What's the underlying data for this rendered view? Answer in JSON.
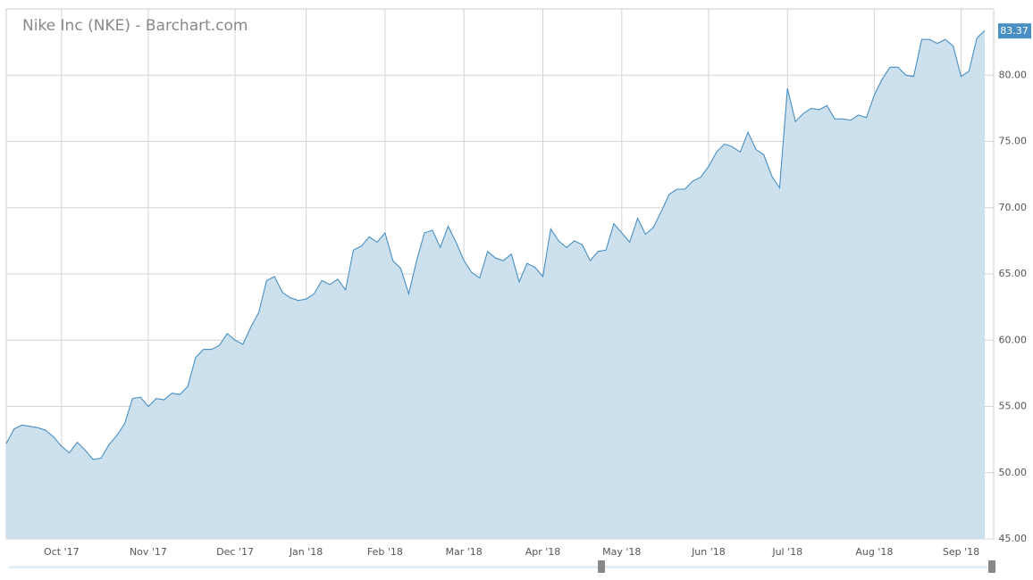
{
  "chart_data": {
    "type": "area",
    "title": "Nike Inc (NKE) - Barchart.com",
    "categories": [
      null,
      null,
      null,
      null,
      null,
      null,
      null,
      "Oct '17",
      null,
      null,
      null,
      null,
      null,
      null,
      null,
      null,
      null,
      null,
      "Nov '17",
      null,
      null,
      null,
      null,
      null,
      null,
      null,
      null,
      null,
      null,
      "Dec '17",
      null,
      null,
      null,
      null,
      null,
      null,
      null,
      null,
      "Jan '18",
      null,
      null,
      null,
      null,
      null,
      null,
      null,
      null,
      null,
      "Feb '18",
      null,
      null,
      null,
      null,
      null,
      null,
      null,
      null,
      null,
      "Mar '18",
      null,
      null,
      null,
      null,
      null,
      null,
      null,
      null,
      null,
      "Apr '18",
      null,
      null,
      null,
      null,
      null,
      null,
      null,
      null,
      null,
      "May '18",
      null,
      null,
      null,
      null,
      null,
      null,
      null,
      null,
      null,
      null,
      "Jun '18",
      null,
      null,
      null,
      null,
      null,
      null,
      null,
      null,
      null,
      "Jul '18",
      null,
      null,
      null,
      null,
      null,
      null,
      null,
      null,
      null,
      null,
      "Aug '18",
      null,
      null,
      null,
      null,
      null,
      null,
      null,
      null,
      null,
      null,
      "Sep '18",
      null,
      null,
      null
    ],
    "values": [
      52.2,
      53.3,
      53.6,
      53.5,
      53.4,
      53.2,
      52.7,
      52.0,
      51.5,
      52.3,
      51.7,
      51.0,
      51.1,
      52.1,
      52.8,
      53.7,
      55.6,
      55.7,
      55.0,
      55.6,
      55.5,
      56.0,
      55.9,
      56.5,
      58.7,
      59.3,
      59.3,
      59.6,
      60.5,
      60.0,
      59.7,
      61.0,
      62.1,
      64.5,
      64.8,
      63.6,
      63.2,
      63.0,
      63.1,
      63.5,
      64.5,
      64.2,
      64.6,
      63.8,
      66.8,
      67.1,
      67.8,
      67.4,
      68.1,
      66.0,
      65.4,
      63.5,
      66.0,
      68.1,
      68.3,
      67.0,
      68.6,
      67.4,
      66.0,
      65.1,
      64.7,
      66.7,
      66.2,
      66.0,
      66.5,
      64.4,
      65.8,
      65.5,
      64.8,
      68.4,
      67.5,
      67.0,
      67.5,
      67.2,
      66.0,
      66.7,
      66.8,
      68.8,
      68.1,
      67.4,
      69.2,
      68.0,
      68.5,
      69.7,
      71.0,
      71.4,
      71.4,
      72.0,
      72.3,
      73.1,
      74.2,
      74.8,
      74.6,
      74.2,
      75.7,
      74.4,
      74.0,
      72.4,
      71.5,
      79.0,
      76.5,
      77.1,
      77.5,
      77.4,
      77.7,
      76.7,
      76.7,
      76.6,
      77.0,
      76.8,
      78.5,
      79.7,
      80.6,
      80.6,
      80.0,
      79.9,
      82.7,
      82.7,
      82.4,
      82.7,
      82.2,
      79.9,
      80.3,
      82.8,
      83.37
    ],
    "color": "#4a8fc2",
    "fill_color": "#c9dfec",
    "ylim": [
      45,
      85
    ],
    "yticks": [
      {
        "value": 45,
        "label": "45.00"
      },
      {
        "value": 50,
        "label": "50.00"
      },
      {
        "value": 55,
        "label": "55.00"
      },
      {
        "value": 60,
        "label": "60.00"
      },
      {
        "value": 65,
        "label": "65.00"
      },
      {
        "value": 70,
        "label": "70.00"
      },
      {
        "value": 75,
        "label": "75.00"
      },
      {
        "value": 80,
        "label": "80.00"
      }
    ],
    "grid": true
  }
}
